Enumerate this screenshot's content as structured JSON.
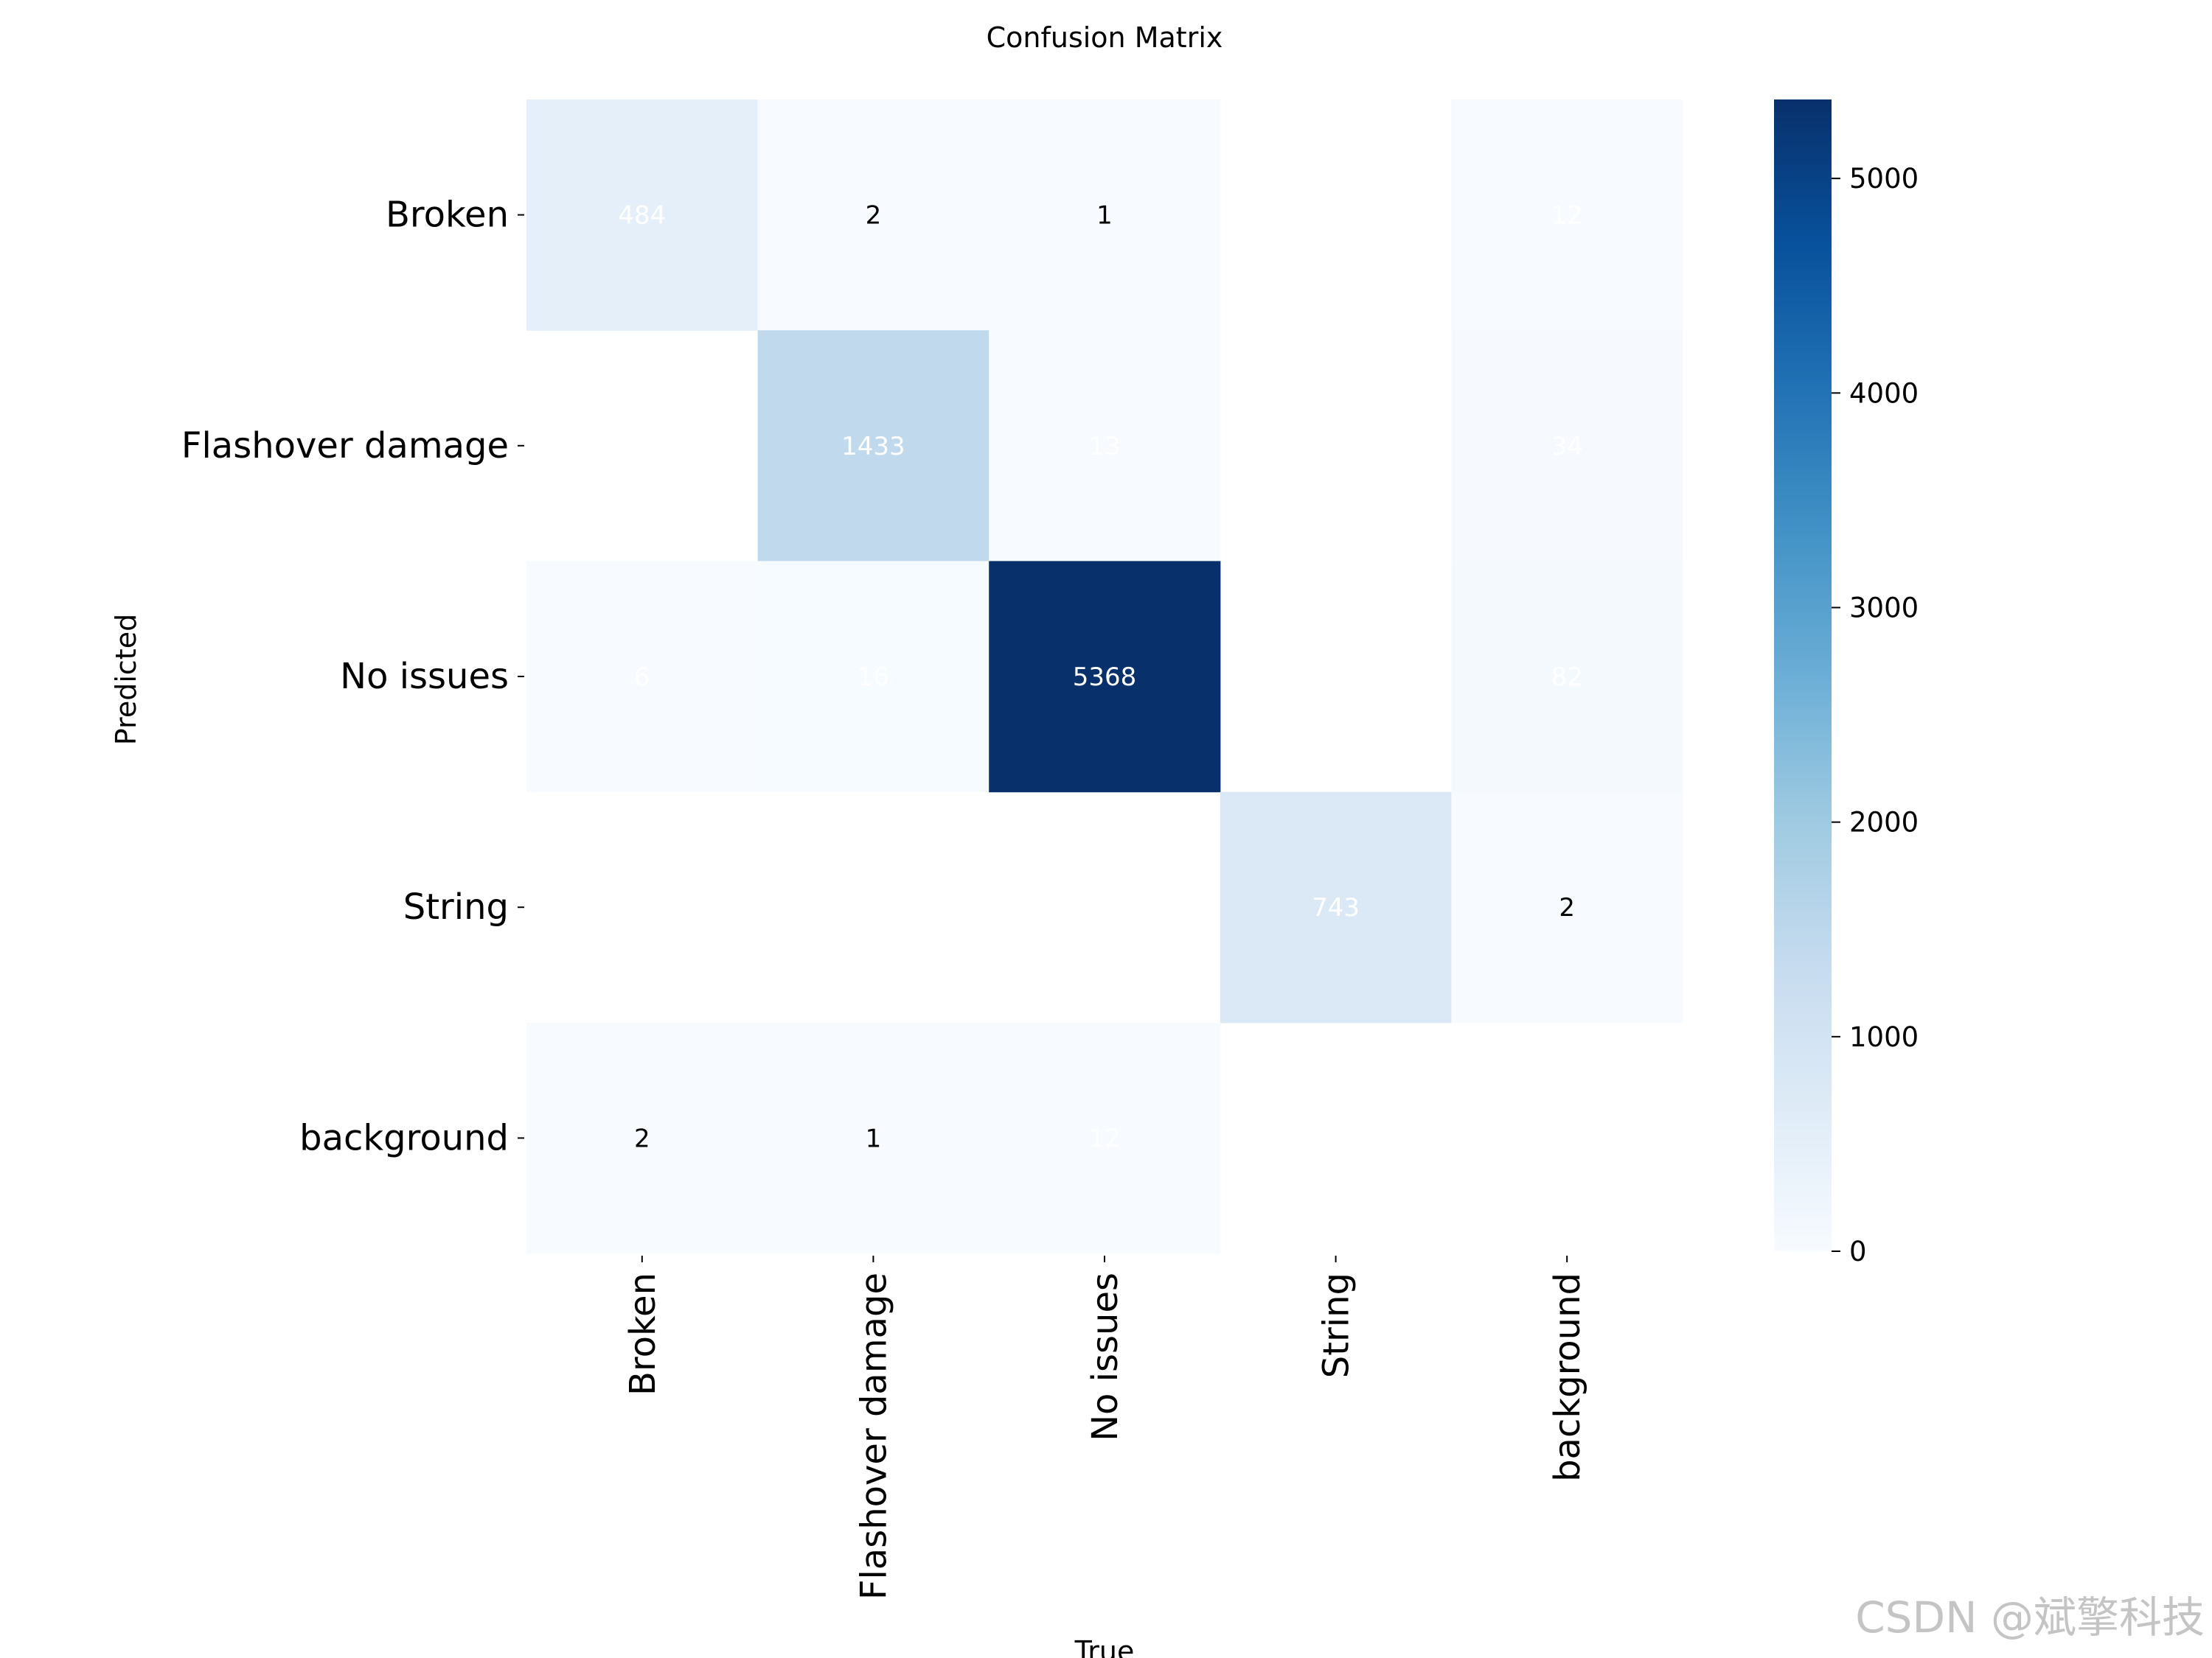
{
  "chart_data": {
    "type": "heatmap",
    "title": "Confusion Matrix",
    "xlabel": "True",
    "ylabel": "Predicted",
    "x_categories": [
      "Broken",
      "Flashover damage",
      "No issues",
      "String",
      "background"
    ],
    "y_categories": [
      "Broken",
      "Flashover damage",
      "No issues",
      "String",
      "background"
    ],
    "values": [
      [
        484,
        2,
        1,
        null,
        12
      ],
      [
        null,
        1433,
        13,
        null,
        34
      ],
      [
        6,
        16,
        5368,
        null,
        82
      ],
      [
        null,
        null,
        null,
        743,
        2
      ],
      [
        2,
        1,
        12,
        null,
        null
      ]
    ],
    "colormap": "Blues",
    "colorbar": {
      "min": 0,
      "max": 5368,
      "ticks": [
        0,
        1000,
        2000,
        3000,
        4000,
        5000
      ]
    }
  },
  "watermark": "CSDN @斌擎科技"
}
